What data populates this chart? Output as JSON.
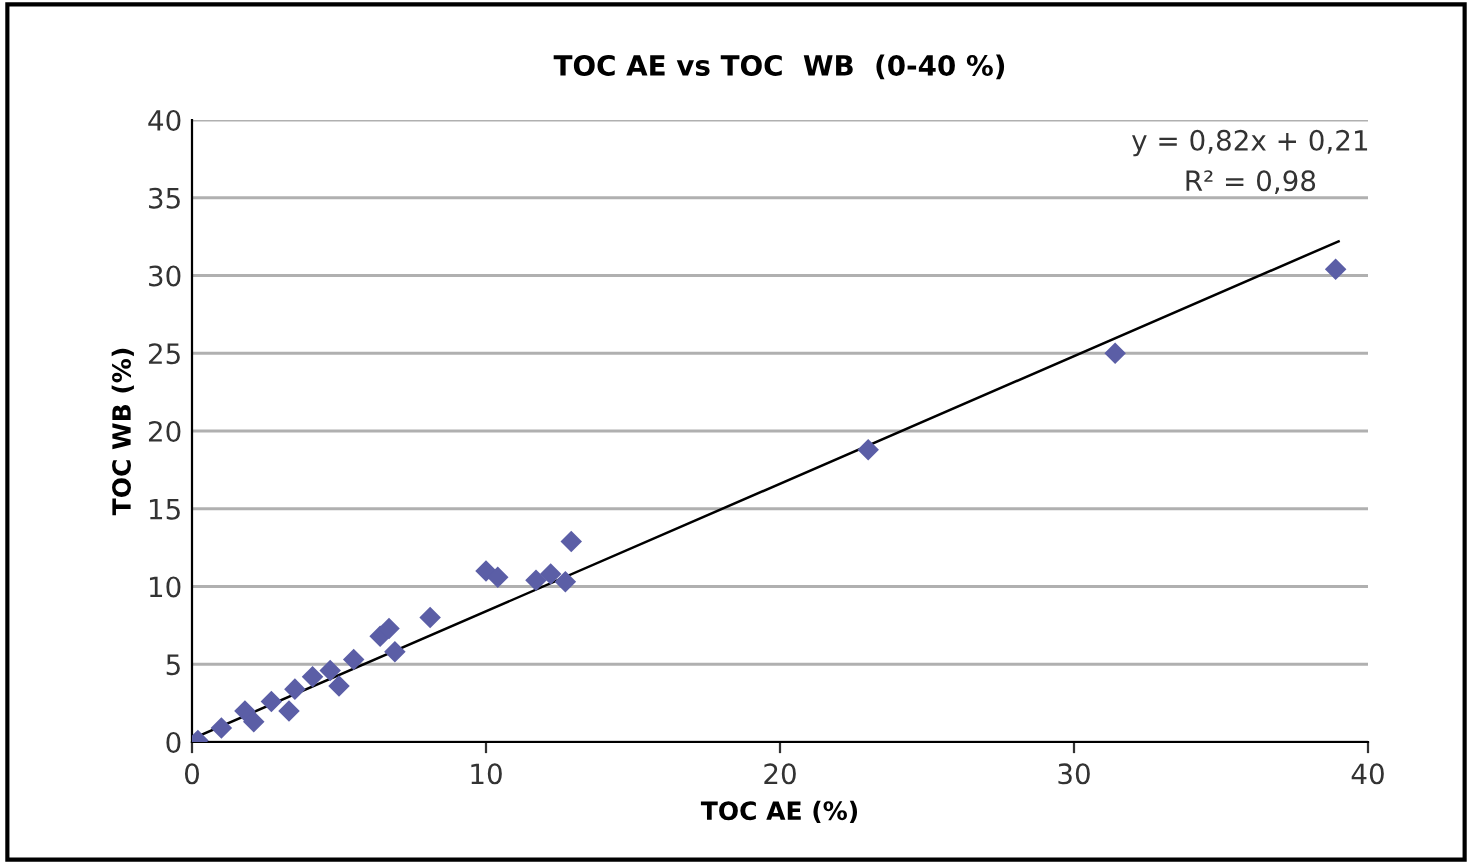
{
  "chart_data": {
    "type": "scatter",
    "title": "TOC AE vs TOC  WB  (0-40 %)",
    "xlabel": "TOC AE (%)",
    "ylabel": "TOC WB (%)",
    "annotations": [
      "y = 0,82x + 0,21",
      "R² = 0,98"
    ],
    "xlim": [
      0,
      40
    ],
    "ylim": [
      0,
      40
    ],
    "xticks": [
      0,
      10,
      20,
      30,
      40
    ],
    "yticks": [
      0,
      5,
      10,
      15,
      20,
      25,
      30,
      35,
      40
    ],
    "grid": "y",
    "series": [
      {
        "color": "#5b5ea6",
        "marker": "diamond",
        "x": [
          0.2,
          1.0,
          1.8,
          2.1,
          2.7,
          3.3,
          3.5,
          4.1,
          4.7,
          5.0,
          5.5,
          6.4,
          6.7,
          6.9,
          8.1,
          10.0,
          10.4,
          11.7,
          12.2,
          12.7,
          12.9,
          23.0,
          31.4,
          38.9
        ],
        "values": [
          0.1,
          0.9,
          2.0,
          1.3,
          2.6,
          2.0,
          3.4,
          4.2,
          4.6,
          3.6,
          5.3,
          6.8,
          7.3,
          5.8,
          8.0,
          11.0,
          10.6,
          10.4,
          10.8,
          10.3,
          12.9,
          18.8,
          25.0,
          30.4
        ]
      },
      {
        "type": "line",
        "color": "#000000",
        "x": [
          0,
          39
        ],
        "values": [
          0.2,
          32.2
        ]
      }
    ]
  }
}
